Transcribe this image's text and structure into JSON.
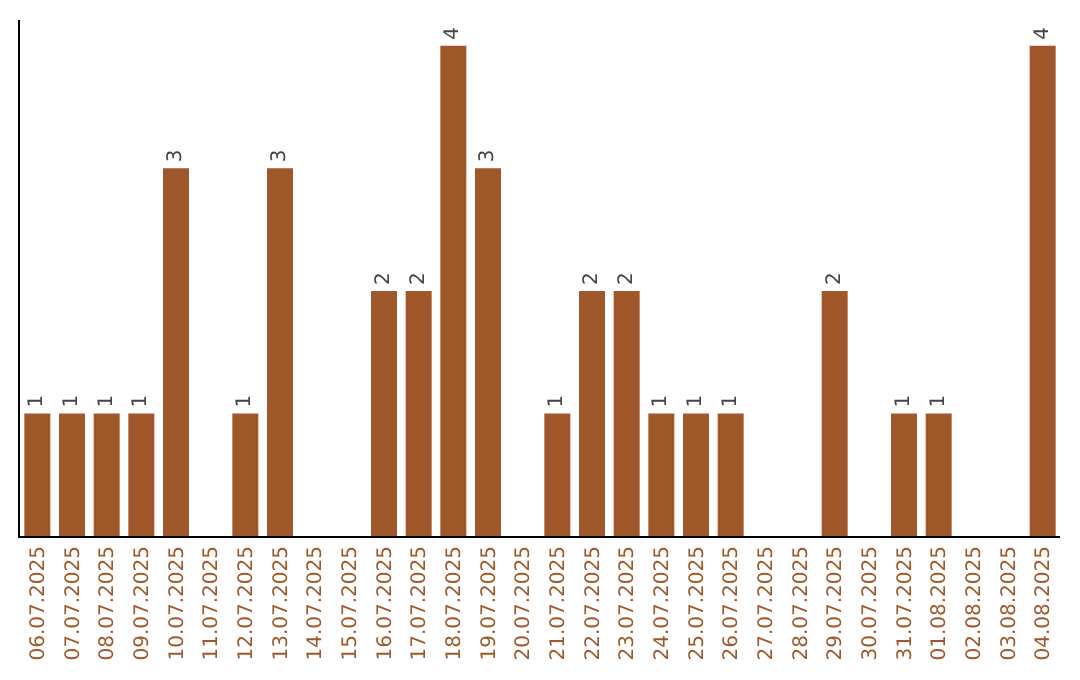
{
  "chart_data": {
    "type": "bar",
    "categories": [
      "06.07.2025",
      "07.07.2025",
      "08.07.2025",
      "09.07.2025",
      "10.07.2025",
      "11.07.2025",
      "12.07.2025",
      "13.07.2025",
      "14.07.2025",
      "15.07.2025",
      "16.07.2025",
      "17.07.2025",
      "18.07.2025",
      "19.07.2025",
      "20.07.2025",
      "21.07.2025",
      "22.07.2025",
      "23.07.2025",
      "24.07.2025",
      "25.07.2025",
      "26.07.2025",
      "27.07.2025",
      "28.07.2025",
      "29.07.2025",
      "30.07.2025",
      "31.07.2025",
      "01.08.2025",
      "02.08.2025",
      "03.08.2025",
      "04.08.2025"
    ],
    "values": [
      1,
      1,
      1,
      1,
      3,
      0,
      1,
      3,
      0,
      0,
      2,
      2,
      4,
      3,
      0,
      1,
      2,
      2,
      1,
      1,
      1,
      0,
      0,
      2,
      0,
      1,
      1,
      0,
      0,
      4
    ],
    "value_labels": [
      "1",
      "1",
      "1",
      "1",
      "3",
      null,
      "1",
      "3",
      null,
      null,
      "2",
      "2",
      "4",
      "3",
      null,
      "1",
      "2",
      "2",
      "1",
      "1",
      "1",
      null,
      null,
      "2",
      null,
      "1",
      "1",
      null,
      null,
      "4"
    ],
    "color": "#a0582a",
    "tick_labels": "x"
  }
}
